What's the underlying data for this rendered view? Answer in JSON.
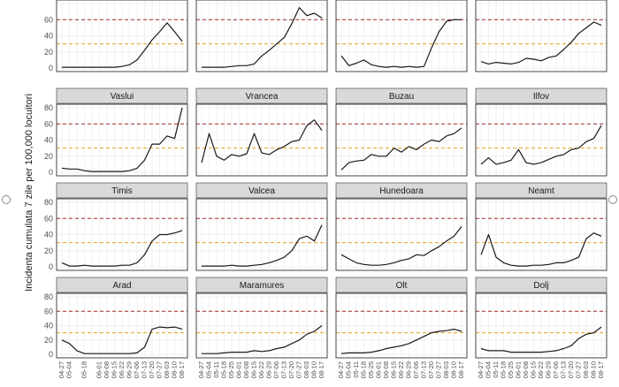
{
  "chart_data": {
    "type": "line",
    "ylabel": "Incidenta cumulata 7 zile per 100,000 locuitori",
    "ylim": [
      0,
      80
    ],
    "yticks": [
      0,
      20,
      40,
      60,
      80
    ],
    "reference_lines": [
      {
        "value": 60,
        "color": "#a52a2a"
      },
      {
        "value": 30,
        "color": "#e6a11f"
      }
    ],
    "x_start": "2021-04-27",
    "x_end": "2021-08-17",
    "x_tick_labels": [
      "04-27",
      "05-04",
      "05-11",
      "05-18",
      "05-25",
      "06-01",
      "06-08",
      "06-15",
      "06-22",
      "06-29",
      "07-06",
      "07-13",
      "07-20",
      "07-27",
      "08-03",
      "08-10",
      "08-17"
    ],
    "x_tick_labels_shown": [
      [
        "04-27",
        "05-04",
        "05-18",
        "06-01",
        "06-08",
        "06-15",
        "06-22",
        "06-29",
        "07-06",
        "07-13",
        "07-20",
        "07-27",
        "08-03",
        "08-10",
        "08-17"
      ],
      [
        "04-27",
        "05-04",
        "05-11",
        "05-18",
        "05-25",
        "06-01",
        "06-08",
        "06-15",
        "06-22",
        "06-29",
        "07-06",
        "07-13",
        "07-20",
        "07-27",
        "08-03",
        "08-10",
        "08-17"
      ],
      [
        "04-27",
        "05-04",
        "05-11",
        "05-18",
        "05-25",
        "06-01",
        "06-08",
        "06-15",
        "06-22",
        "06-29",
        "07-06",
        "07-13",
        "07-20",
        "07-27",
        "08-03",
        "08-10",
        "08-17"
      ],
      [
        "04-27",
        "05-04",
        "05-11",
        "05-18",
        "05-25",
        "06-01",
        "06-08",
        "06-15",
        "06-22",
        "06-29",
        "07-06",
        "07-13",
        "07-20",
        "07-27",
        "08-03",
        "08-10",
        "08-17"
      ]
    ],
    "x_dates": [
      "2021-04-27",
      "2021-05-04",
      "2021-05-11",
      "2021-05-18",
      "2021-05-25",
      "2021-06-01",
      "2021-06-08",
      "2021-06-15",
      "2021-06-22",
      "2021-06-29",
      "2021-07-06",
      "2021-07-13",
      "2021-07-20",
      "2021-07-27",
      "2021-08-03",
      "2021-08-10",
      "2021-08-17"
    ],
    "panels": [
      {
        "name": "",
        "values": [
          1,
          1,
          1,
          1,
          1,
          1,
          1,
          1,
          2,
          4,
          10,
          22,
          35,
          45,
          56,
          45,
          33
        ]
      },
      {
        "name": "",
        "values": [
          1,
          1,
          1,
          1,
          2,
          3,
          3,
          5,
          15,
          22,
          30,
          38,
          55,
          75,
          65,
          68,
          62
        ]
      },
      {
        "name": "",
        "values": [
          15,
          3,
          6,
          10,
          4,
          2,
          1,
          2,
          1,
          2,
          1,
          2,
          25,
          45,
          58,
          60,
          60
        ]
      },
      {
        "name": "",
        "values": [
          8,
          5,
          7,
          6,
          5,
          7,
          12,
          11,
          9,
          13,
          15,
          23,
          32,
          43,
          50,
          57,
          53
        ]
      },
      {
        "name": "Vaslui",
        "values": [
          5,
          4,
          4,
          2,
          1,
          1,
          1,
          1,
          1,
          2,
          5,
          15,
          35,
          35,
          45,
          42,
          80
        ]
      },
      {
        "name": "Vrancea",
        "values": [
          12,
          48,
          20,
          15,
          22,
          20,
          23,
          48,
          24,
          22,
          28,
          32,
          38,
          40,
          58,
          65,
          52
        ]
      },
      {
        "name": "Buzau",
        "values": [
          3,
          12,
          14,
          15,
          22,
          20,
          20,
          30,
          25,
          32,
          28,
          35,
          40,
          38,
          45,
          48,
          55
        ]
      },
      {
        "name": "Ilfov",
        "values": [
          10,
          18,
          10,
          12,
          15,
          28,
          12,
          10,
          12,
          16,
          20,
          22,
          28,
          30,
          38,
          42,
          58
        ]
      },
      {
        "name": "Timis",
        "values": [
          5,
          1,
          1,
          2,
          1,
          1,
          1,
          1,
          2,
          2,
          5,
          15,
          32,
          40,
          40,
          42,
          45
        ]
      },
      {
        "name": "Valcea",
        "values": [
          1,
          1,
          1,
          1,
          2,
          1,
          1,
          2,
          3,
          5,
          8,
          12,
          20,
          35,
          38,
          32,
          52
        ]
      },
      {
        "name": "Hunedoara",
        "values": [
          15,
          10,
          5,
          3,
          2,
          2,
          3,
          5,
          8,
          10,
          15,
          14,
          20,
          25,
          32,
          38,
          50
        ]
      },
      {
        "name": "Neamt",
        "values": [
          15,
          40,
          12,
          5,
          2,
          1,
          1,
          2,
          2,
          3,
          5,
          5,
          8,
          12,
          35,
          42,
          38
        ]
      },
      {
        "name": "Arad",
        "values": [
          20,
          15,
          5,
          1,
          1,
          1,
          1,
          1,
          1,
          1,
          2,
          10,
          35,
          38,
          37,
          38,
          35
        ]
      },
      {
        "name": "Maramures",
        "values": [
          1,
          1,
          1,
          2,
          3,
          3,
          3,
          5,
          4,
          5,
          8,
          10,
          15,
          20,
          28,
          32,
          40
        ]
      },
      {
        "name": "Olt",
        "values": [
          1,
          2,
          2,
          2,
          3,
          5,
          8,
          10,
          12,
          15,
          20,
          25,
          30,
          32,
          33,
          35,
          32
        ]
      },
      {
        "name": "Dolj",
        "values": [
          8,
          5,
          5,
          5,
          3,
          3,
          3,
          3,
          3,
          4,
          5,
          8,
          12,
          22,
          28,
          30,
          38
        ]
      }
    ]
  }
}
